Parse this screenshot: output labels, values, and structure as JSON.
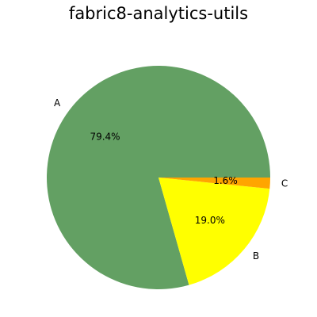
{
  "chart_data": {
    "type": "pie",
    "title": "fabric8-analytics-utils",
    "labels": [
      "A",
      "B",
      "C"
    ],
    "values": [
      79.4,
      19.0,
      1.6
    ],
    "percent_labels": [
      "79.4%",
      "19.0%",
      "1.6%"
    ],
    "colors": [
      "#63a063",
      "#ffff00",
      "#ffa500"
    ],
    "start_angle_deg": 0,
    "direction": "counterclockwise",
    "legend": false
  }
}
